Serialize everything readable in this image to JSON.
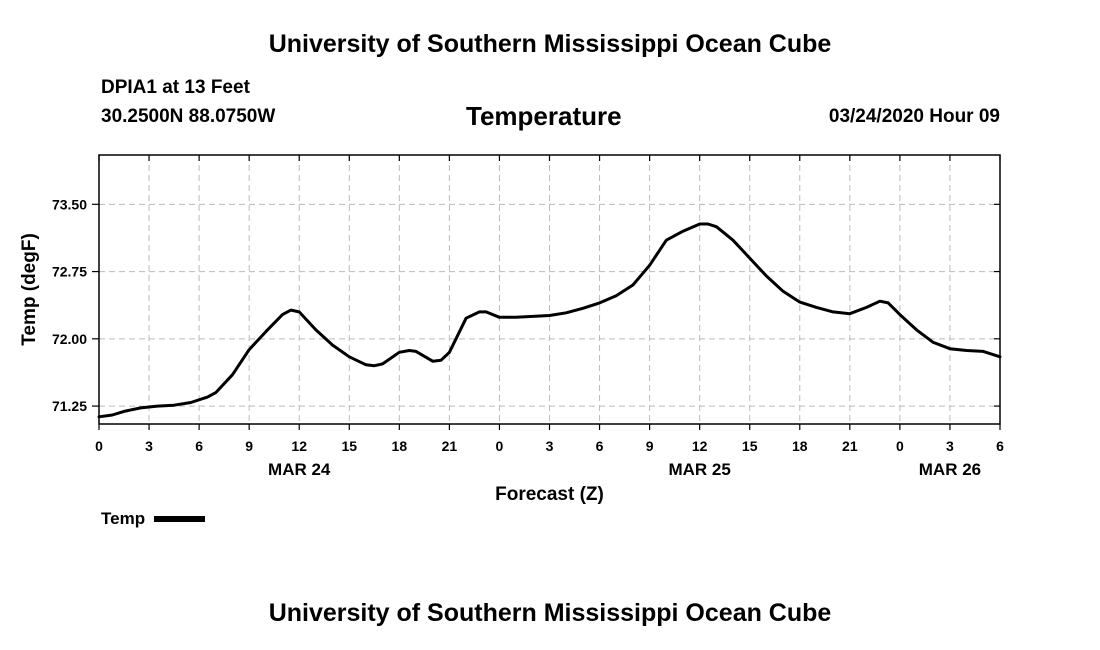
{
  "header": {
    "site_title": "University of Southern Mississippi Ocean Cube",
    "station": "DPIA1 at 13 Feet",
    "coords": "30.2500N 88.0750W",
    "date": "03/24/2020 Hour 09",
    "footer_title": "University of Southern Mississippi Ocean Cube"
  },
  "chart_data": {
    "type": "line",
    "title": "Temperature",
    "xlabel": "Forecast (Z)",
    "ylabel": "Temp (degF)",
    "ylim": [
      71.05,
      74.05
    ],
    "yticks": [
      "71.25",
      "72.00",
      "72.75",
      "73.50"
    ],
    "ytick_values": [
      71.25,
      72.0,
      72.75,
      73.5
    ],
    "xlim": [
      0,
      54
    ],
    "xticks": [
      "0",
      "3",
      "6",
      "9",
      "12",
      "15",
      "18",
      "21",
      "0",
      "3",
      "6",
      "9",
      "12",
      "15",
      "18",
      "21",
      "0",
      "3",
      "6"
    ],
    "xtick_hours": [
      0,
      3,
      6,
      9,
      12,
      15,
      18,
      21,
      24,
      27,
      30,
      33,
      36,
      39,
      42,
      45,
      48,
      51,
      54
    ],
    "day_labels": [
      "MAR 24",
      "MAR 25",
      "MAR 26"
    ],
    "day_label_hours": [
      12,
      36,
      51
    ],
    "grid": true,
    "color": "#000000",
    "series": [
      {
        "name": "Temp",
        "x": [
          0,
          0.8,
          1.5,
          2.5,
          3.5,
          4.5,
          5.5,
          6.5,
          7,
          8,
          9,
          10,
          11,
          11.5,
          12,
          13,
          14,
          15,
          16,
          16.5,
          17,
          18,
          18.6,
          19,
          20,
          20.5,
          21,
          22,
          22.8,
          23.2,
          24,
          25,
          26,
          27,
          28,
          29,
          30,
          31,
          32,
          33,
          34,
          35,
          36,
          36.5,
          37,
          38,
          39,
          40,
          41,
          42,
          43,
          44,
          45,
          46,
          46.8,
          47.3,
          48,
          49,
          50,
          51,
          52,
          53,
          54
        ],
        "y": [
          71.13,
          71.15,
          71.19,
          71.23,
          71.25,
          71.26,
          71.29,
          71.35,
          71.4,
          71.6,
          71.88,
          72.08,
          72.27,
          72.32,
          72.3,
          72.1,
          71.93,
          71.8,
          71.71,
          71.7,
          71.72,
          71.85,
          71.87,
          71.86,
          71.75,
          71.76,
          71.85,
          72.23,
          72.3,
          72.3,
          72.24,
          72.24,
          72.25,
          72.26,
          72.29,
          72.34,
          72.4,
          72.48,
          72.6,
          72.82,
          73.1,
          73.2,
          73.28,
          73.28,
          73.25,
          73.1,
          72.9,
          72.7,
          72.53,
          72.41,
          72.35,
          72.3,
          72.28,
          72.35,
          72.42,
          72.4,
          72.27,
          72.1,
          71.96,
          71.89,
          71.87,
          71.86,
          71.8
        ]
      }
    ]
  },
  "legend": {
    "label": "Temp"
  }
}
